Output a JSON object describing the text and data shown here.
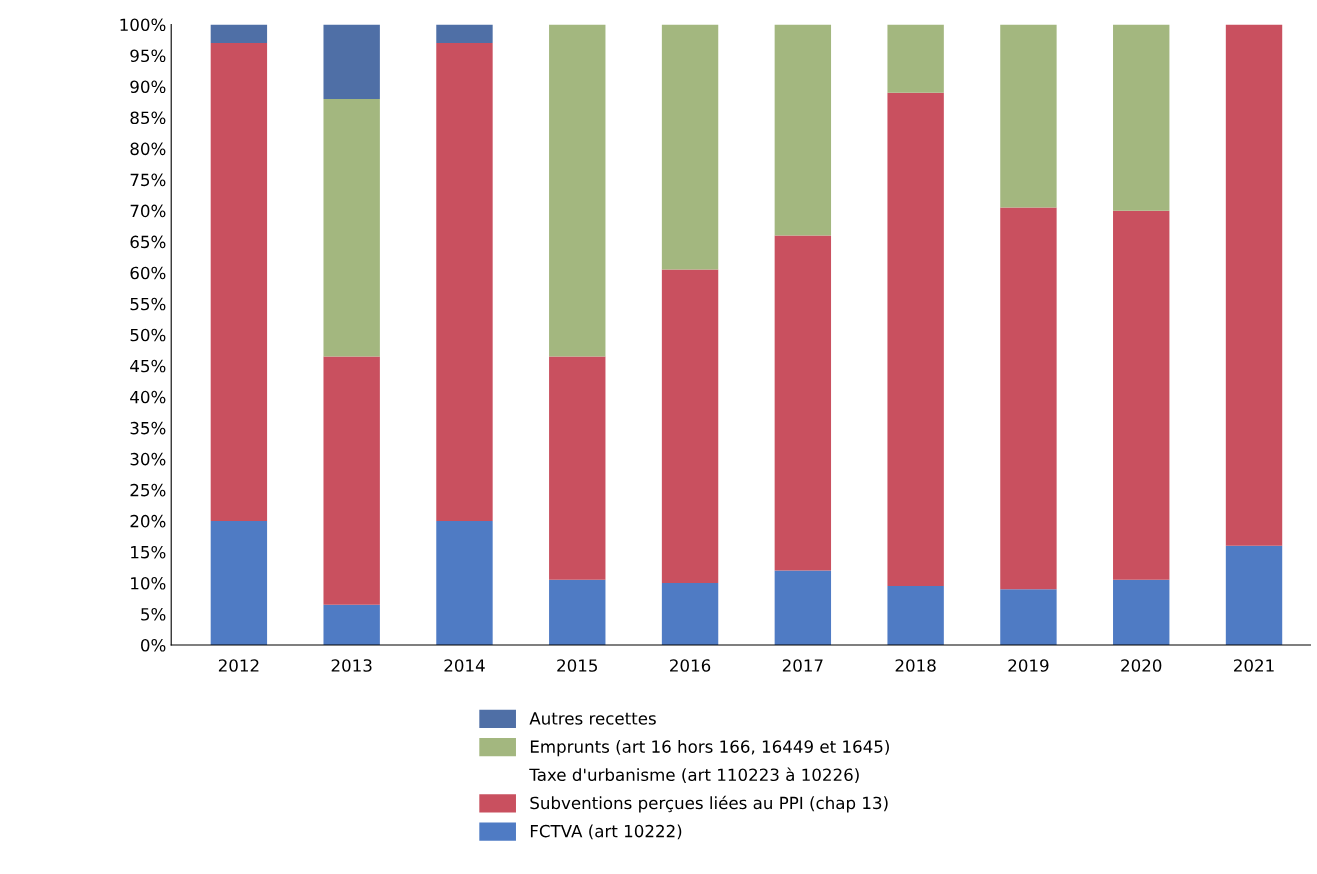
{
  "chart_data": {
    "type": "bar",
    "stacked": true,
    "categories": [
      "2012",
      "2013",
      "2014",
      "2015",
      "2016",
      "2017",
      "2018",
      "2019",
      "2020",
      "2021"
    ],
    "series": [
      {
        "name": "FCTVA (art 10222)",
        "color": "#4f7bc4",
        "values": [
          20,
          6.5,
          20,
          10.5,
          10,
          12,
          9.5,
          9,
          10.5,
          16
        ]
      },
      {
        "name": "Subventions perçues liées au PPI (chap 13)",
        "color": "#c9505f",
        "values": [
          77,
          40,
          77,
          36,
          50.5,
          54,
          79.5,
          61.5,
          59.5,
          84
        ]
      },
      {
        "name": "Taxe d'urbanisme (art 110223 à 10226)",
        "values": [
          0,
          0,
          0,
          0,
          0,
          0,
          0,
          0,
          0,
          0
        ]
      },
      {
        "name": "Emprunts (art 16 hors 166, 16449 et 1645)",
        "color": "#a3b77f",
        "values": [
          0,
          41.5,
          0,
          53.5,
          39.5,
          34,
          11,
          29.5,
          30,
          0
        ]
      },
      {
        "name": "Autres recettes",
        "color": "#4f6fa6",
        "values": [
          3,
          12,
          3,
          0,
          0,
          0,
          0,
          0,
          0,
          0
        ]
      }
    ],
    "ylim": [
      0,
      100
    ],
    "yticks": [
      {
        "value": 0,
        "label": "0%"
      },
      {
        "value": 5,
        "label": "5%"
      },
      {
        "value": 10,
        "label": "10%"
      },
      {
        "value": 15,
        "label": "15%"
      },
      {
        "value": 20,
        "label": "20%"
      },
      {
        "value": 25,
        "label": "25%"
      },
      {
        "value": 30,
        "label": "30%"
      },
      {
        "value": 35,
        "label": "35%"
      },
      {
        "value": 40,
        "label": "40%"
      },
      {
        "value": 45,
        "label": "45%"
      },
      {
        "value": 50,
        "label": "50%"
      },
      {
        "value": 55,
        "label": "55%"
      },
      {
        "value": 60,
        "label": "60%"
      },
      {
        "value": 65,
        "label": "65%"
      },
      {
        "value": 70,
        "label": "70%"
      },
      {
        "value": 75,
        "label": "75%"
      },
      {
        "value": 80,
        "label": "80%"
      },
      {
        "value": 85,
        "label": "85%"
      },
      {
        "value": 90,
        "label": "90%"
      },
      {
        "value": 95,
        "label": "95%"
      },
      {
        "value": 100,
        "label": "100%"
      }
    ],
    "grid": false,
    "legend": "bottom"
  }
}
